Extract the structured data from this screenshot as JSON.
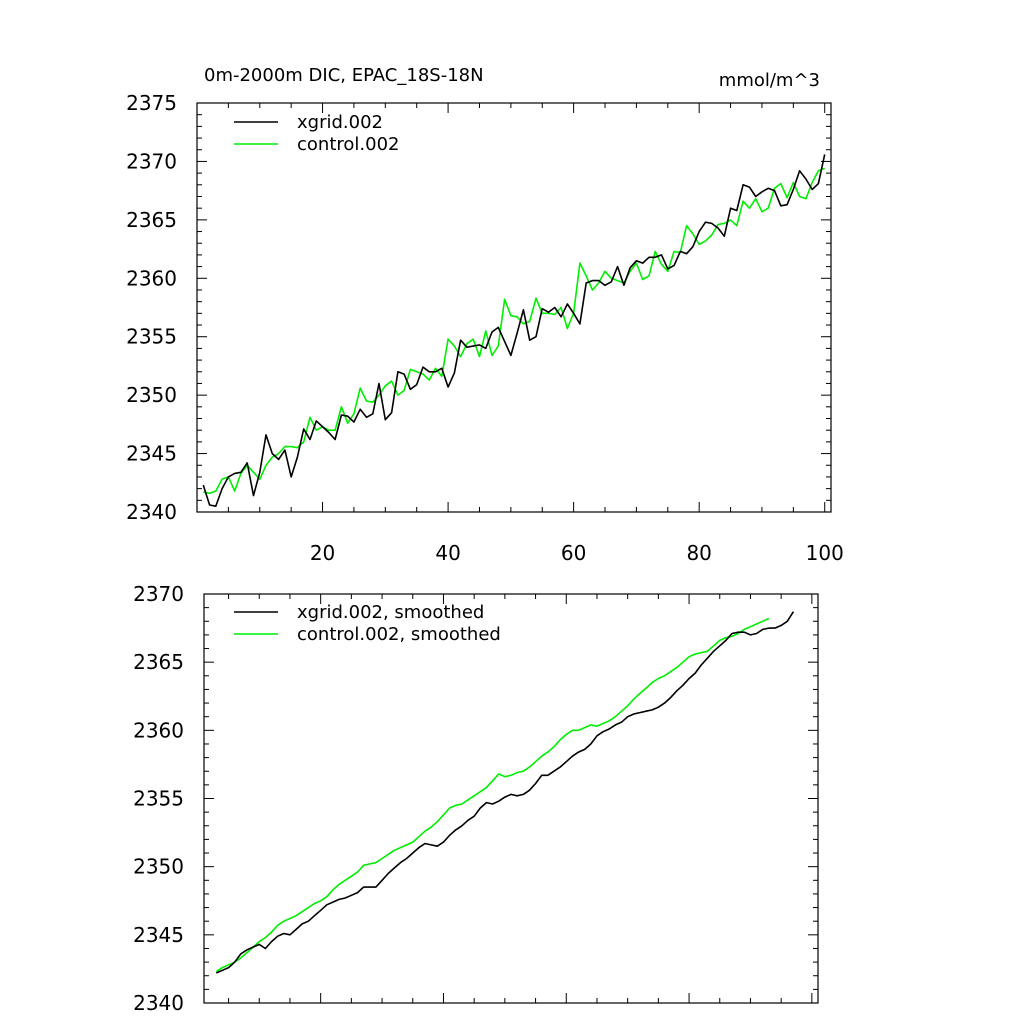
{
  "chart_data": [
    {
      "type": "line",
      "title": "0m-2000m DIC, EPAC_18S-18N",
      "units": "mmol/m^3",
      "ylim": [
        2340,
        2375
      ],
      "yticks": [
        "2340",
        "2345",
        "2350",
        "2355",
        "2360",
        "2365",
        "2370",
        "2375"
      ],
      "xlim": [
        0,
        101
      ],
      "xticks": [
        "20",
        "40",
        "60",
        "80",
        "100"
      ],
      "legend": [
        "xgrid.002",
        "control.002"
      ],
      "colors": [
        "#000000",
        "#00ee00"
      ],
      "series": [
        {
          "name": "xgrid.002",
          "start": 1,
          "values": [
            2342.3,
            2340.6,
            2340.5,
            2342.0,
            2343.0,
            2343.3,
            2343.4,
            2344.2,
            2341.4,
            2343.4,
            2346.6,
            2345.0,
            2344.5,
            2345.3,
            2343.0,
            2344.7,
            2347.1,
            2346.2,
            2347.8,
            2347.3,
            2346.8,
            2346.2,
            2348.3,
            2348.2,
            2347.7,
            2348.8,
            2348.1,
            2348.4,
            2351.0,
            2347.9,
            2348.5,
            2352.0,
            2351.8,
            2350.5,
            2350.9,
            2352.4,
            2352.0,
            2352.0,
            2352.3,
            2350.7,
            2351.9,
            2354.7,
            2354.1,
            2354.2,
            2354.3,
            2354.0,
            2355.4,
            2355.8,
            2354.6,
            2353.4,
            2355.3,
            2357.3,
            2354.7,
            2355.0,
            2357.4,
            2357.1,
            2357.5,
            2356.7,
            2357.8,
            2357.0,
            2356.1,
            2359.6,
            2359.8,
            2359.8,
            2359.4,
            2359.7,
            2361.0,
            2359.4,
            2360.9,
            2361.5,
            2361.3,
            2361.8,
            2361.8,
            2362.0,
            2360.8,
            2361.1,
            2362.3,
            2362.1,
            2362.7,
            2364.0,
            2364.8,
            2364.7,
            2364.3,
            2363.6,
            2366.0,
            2365.8,
            2368.0,
            2367.8,
            2367.0,
            2367.4,
            2367.7,
            2367.5,
            2366.2,
            2366.3,
            2367.6,
            2369.2,
            2368.5,
            2367.6,
            2368.1,
            2370.6
          ]
        },
        {
          "name": "control.002",
          "start": 1,
          "values": [
            2341.7,
            2341.6,
            2341.8,
            2342.8,
            2343.0,
            2341.8,
            2343.3,
            2344.0,
            2343.4,
            2342.8,
            2344.0,
            2344.7,
            2345.0,
            2345.6,
            2345.6,
            2345.5,
            2346.0,
            2348.1,
            2347.0,
            2347.3,
            2347.0,
            2347.0,
            2349.0,
            2347.6,
            2348.4,
            2350.6,
            2349.5,
            2349.4,
            2350.0,
            2350.8,
            2351.2,
            2350.0,
            2350.4,
            2352.2,
            2352.0,
            2351.8,
            2351.3,
            2352.3,
            2351.6,
            2354.8,
            2354.2,
            2353.3,
            2354.4,
            2354.8,
            2353.3,
            2355.5,
            2353.4,
            2354.2,
            2358.2,
            2356.8,
            2356.7,
            2356.1,
            2356.3,
            2358.3,
            2357.0,
            2357.0,
            2356.9,
            2357.5,
            2355.7,
            2357.0,
            2361.3,
            2360.2,
            2359.0,
            2359.6,
            2360.6,
            2360.0,
            2359.8,
            2359.6,
            2360.6,
            2361.3,
            2359.9,
            2360.2,
            2362.3,
            2361.2,
            2360.6,
            2362.3,
            2362.2,
            2364.5,
            2363.8,
            2362.9,
            2363.2,
            2363.7,
            2364.6,
            2364.7,
            2365.0,
            2364.5,
            2366.6,
            2366.0,
            2366.8,
            2365.7,
            2366.0,
            2367.7,
            2368.1,
            2366.9,
            2368.2,
            2367.0,
            2366.8,
            2368.2,
            2369.2,
            2369.4
          ]
        }
      ]
    },
    {
      "type": "line",
      "title": "",
      "ylim": [
        2340,
        2370
      ],
      "yticks": [
        "2340",
        "2345",
        "2350",
        "2355",
        "2360",
        "2365",
        "2370"
      ],
      "xlim": [
        0,
        101
      ],
      "legend": [
        "xgrid.002, smoothed",
        "control.002, smoothed"
      ],
      "colors": [
        "#000000",
        "#00ee00"
      ],
      "series": [
        {
          "name": "xgrid.002, smoothed",
          "start": 3,
          "values": [
            2342.2,
            2342.4,
            2342.6,
            2343.0,
            2343.6,
            2343.9,
            2344.1,
            2344.3,
            2344.0,
            2344.5,
            2344.9,
            2345.1,
            2345.0,
            2345.4,
            2345.8,
            2346.0,
            2346.4,
            2346.8,
            2347.2,
            2347.4,
            2347.6,
            2347.7,
            2347.9,
            2348.1,
            2348.5,
            2348.5,
            2348.5,
            2349.0,
            2349.5,
            2349.9,
            2350.3,
            2350.6,
            2351.0,
            2351.4,
            2351.7,
            2351.6,
            2351.5,
            2351.8,
            2352.3,
            2352.7,
            2353.0,
            2353.4,
            2353.7,
            2354.3,
            2354.7,
            2354.6,
            2354.8,
            2355.1,
            2355.3,
            2355.2,
            2355.3,
            2355.6,
            2356.1,
            2356.7,
            2356.7,
            2357.0,
            2357.3,
            2357.7,
            2358.1,
            2358.4,
            2358.6,
            2359.0,
            2359.6,
            2359.9,
            2360.1,
            2360.4,
            2360.6,
            2361.0,
            2361.2,
            2361.3,
            2361.4,
            2361.5,
            2361.7,
            2362.0,
            2362.4,
            2362.9,
            2363.3,
            2363.8,
            2364.2,
            2364.8,
            2365.3,
            2365.8,
            2366.2,
            2366.6,
            2367.1,
            2367.2,
            2367.2,
            2367.0,
            2367.1,
            2367.4,
            2367.5,
            2367.5,
            2367.7,
            2368.0,
            2368.7
          ]
        },
        {
          "name": "control.002, smoothed",
          "start": 3,
          "values": [
            2342.3,
            2342.6,
            2342.8,
            2343.0,
            2343.3,
            2343.7,
            2344.1,
            2344.5,
            2344.8,
            2345.2,
            2345.7,
            2346.0,
            2346.2,
            2346.4,
            2346.7,
            2347.0,
            2347.3,
            2347.5,
            2347.8,
            2348.3,
            2348.7,
            2349.0,
            2349.3,
            2349.6,
            2350.1,
            2350.2,
            2350.3,
            2350.6,
            2350.9,
            2351.2,
            2351.4,
            2351.6,
            2351.8,
            2352.2,
            2352.6,
            2352.9,
            2353.3,
            2353.8,
            2354.3,
            2354.5,
            2354.6,
            2354.9,
            2355.2,
            2355.5,
            2355.8,
            2356.3,
            2356.8,
            2356.6,
            2356.7,
            2356.9,
            2357.0,
            2357.3,
            2357.7,
            2358.1,
            2358.4,
            2358.8,
            2359.3,
            2359.7,
            2360.0,
            2360.0,
            2360.2,
            2360.4,
            2360.3,
            2360.5,
            2360.7,
            2361.0,
            2361.4,
            2361.8,
            2362.3,
            2362.7,
            2363.1,
            2363.5,
            2363.8,
            2364.0,
            2364.3,
            2364.6,
            2365.0,
            2365.4,
            2365.6,
            2365.7,
            2365.8,
            2366.2,
            2366.6,
            2366.8,
            2366.9,
            2367.1,
            2367.4,
            2367.6,
            2367.8,
            2368.0,
            2368.2
          ]
        }
      ]
    }
  ]
}
